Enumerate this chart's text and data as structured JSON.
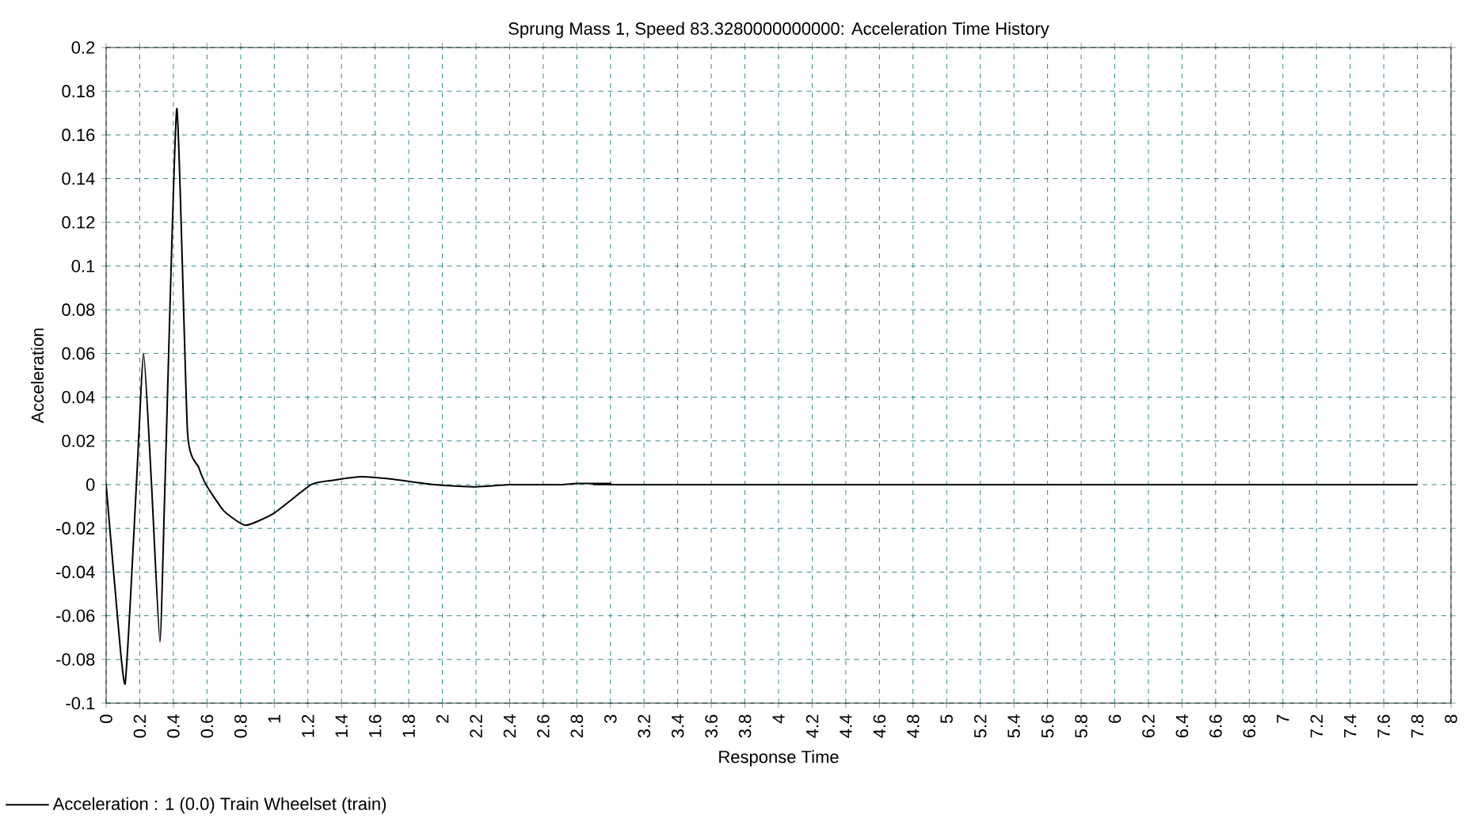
{
  "chart_data": {
    "type": "line",
    "title": "Sprung Mass 1, Speed 83.3280000000000: Acceleration Time History",
    "xlabel": "Response Time",
    "ylabel": "Acceleration",
    "x": [
      0,
      0.05,
      0.113,
      0.18,
      0.223,
      0.27,
      0.32,
      0.35,
      0.42,
      0.484,
      0.55,
      0.594,
      0.7,
      0.83,
      1.0,
      1.22,
      1.35,
      1.52,
      1.7,
      1.95,
      2.2,
      2.4,
      2.7,
      2.8,
      3.0,
      3.1,
      7.8
    ],
    "series": [
      {
        "name": "Acceleration : 1 (0.0) Train Wheelset (train)",
        "color": "#000000",
        "values": [
          0,
          -0.045,
          -0.091,
          0,
          0.06,
          0,
          -0.072,
          0,
          0.172,
          0.024,
          0.008,
          0,
          -0.012,
          -0.0186,
          -0.013,
          0,
          0.002,
          0.0036,
          0.0025,
          0,
          -0.001,
          0,
          0,
          0.0005,
          0.0005,
          0,
          0
        ]
      }
    ],
    "xlim": [
      0,
      8
    ],
    "ylim": [
      -0.1,
      0.2
    ],
    "xticks": [
      0,
      0.2,
      0.4,
      0.6,
      0.8,
      1,
      1.2,
      1.4,
      1.6,
      1.8,
      2,
      2.2,
      2.4,
      2.6,
      2.8,
      3,
      3.2,
      3.4,
      3.6,
      3.8,
      4,
      4.2,
      4.4,
      4.6,
      4.8,
      5,
      5.2,
      5.4,
      5.6,
      5.8,
      6,
      6.2,
      6.4,
      6.6,
      6.8,
      7,
      7.2,
      7.4,
      7.6,
      7.8,
      8
    ],
    "yticks": [
      -0.1,
      -0.08,
      -0.06,
      -0.04,
      -0.02,
      0,
      0.02,
      0.04,
      0.06,
      0.08,
      0.1,
      0.12,
      0.14,
      0.16,
      0.18,
      0.2
    ],
    "grid": true,
    "legend": "bottom left",
    "marker": "none",
    "line_style": "solid"
  }
}
